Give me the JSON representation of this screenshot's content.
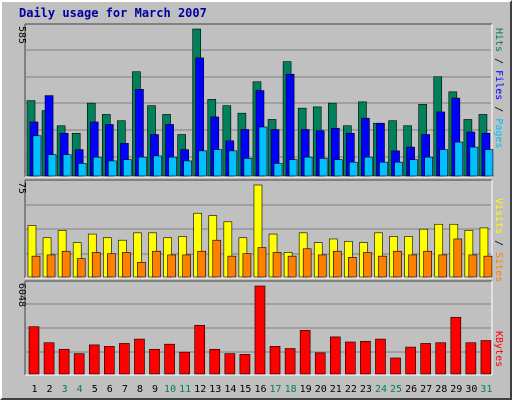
{
  "title": "Daily usage for March 2007",
  "colors": {
    "background": "#c0c0c0",
    "grid": "#808080",
    "hits": "#00805b",
    "files": "#0000ff",
    "pages": "#00c0ff",
    "visits": "#ffff00",
    "sites": "#ff8000",
    "kbytes": "#ff0000",
    "weekend_label": "#00805b",
    "weekday_label": "#000000",
    "title": "#0000a0"
  },
  "chart_data": [
    {
      "type": "bar",
      "panel": "hits",
      "ymax_label": "585",
      "ylim": [
        0,
        585
      ],
      "legend": [
        {
          "label": "Pages",
          "color": "#00c0ff"
        },
        {
          "label": "Files",
          "color": "#0000ff"
        },
        {
          "label": "Hits",
          "color": "#00805b"
        }
      ],
      "categories": [
        "1",
        "2",
        "3",
        "4",
        "5",
        "6",
        "7",
        "8",
        "9",
        "10",
        "11",
        "12",
        "13",
        "14",
        "15",
        "16",
        "17",
        "18",
        "19",
        "20",
        "21",
        "22",
        "23",
        "24",
        "25",
        "26",
        "27",
        "28",
        "29",
        "30",
        "31"
      ],
      "series": [
        {
          "name": "Hits",
          "values": [
            300,
            260,
            200,
            170,
            290,
            245,
            220,
            415,
            280,
            245,
            165,
            585,
            305,
            280,
            250,
            375,
            225,
            455,
            270,
            275,
            290,
            200,
            295,
            210,
            220,
            200,
            285,
            395,
            335,
            225,
            245
          ]
        },
        {
          "name": "Files",
          "values": [
            215,
            320,
            170,
            105,
            215,
            205,
            130,
            345,
            165,
            205,
            105,
            470,
            235,
            140,
            185,
            340,
            185,
            405,
            185,
            180,
            190,
            170,
            230,
            210,
            100,
            115,
            165,
            255,
            310,
            175,
            170
          ]
        },
        {
          "name": "Pages",
          "values": [
            160,
            85,
            85,
            50,
            75,
            60,
            65,
            75,
            80,
            75,
            60,
            100,
            105,
            100,
            70,
            195,
            50,
            65,
            75,
            70,
            65,
            55,
            75,
            55,
            55,
            65,
            75,
            105,
            135,
            115,
            105
          ]
        }
      ]
    },
    {
      "type": "bar",
      "panel": "visits",
      "ymax_label": "75",
      "ylim": [
        0,
        75
      ],
      "legend": [
        {
          "label": "Sites",
          "color": "#ff8000"
        },
        {
          "label": "Visits",
          "color": "#ffff00"
        }
      ],
      "categories": [
        "1",
        "2",
        "3",
        "4",
        "5",
        "6",
        "7",
        "8",
        "9",
        "10",
        "11",
        "12",
        "13",
        "14",
        "15",
        "16",
        "17",
        "18",
        "19",
        "20",
        "21",
        "22",
        "23",
        "24",
        "25",
        "26",
        "27",
        "28",
        "29",
        "30",
        "31"
      ],
      "series": [
        {
          "name": "Visits",
          "values": [
            42,
            32,
            38,
            28,
            35,
            32,
            30,
            36,
            36,
            32,
            33,
            52,
            50,
            45,
            32,
            75,
            35,
            20,
            36,
            28,
            31,
            29,
            28,
            36,
            33,
            33,
            39,
            43,
            43,
            38,
            40
          ]
        },
        {
          "name": "Sites",
          "values": [
            17,
            18,
            21,
            15,
            20,
            19,
            20,
            12,
            21,
            18,
            18,
            21,
            30,
            17,
            19,
            24,
            20,
            17,
            23,
            18,
            21,
            16,
            20,
            17,
            21,
            18,
            21,
            18,
            31,
            18,
            17
          ]
        }
      ]
    },
    {
      "type": "bar",
      "panel": "kbytes",
      "ymax_label": "6048",
      "ylim": [
        0,
        6048
      ],
      "legend": [
        {
          "label": "KBytes",
          "color": "#ff0000"
        }
      ],
      "categories": [
        "1",
        "2",
        "3",
        "4",
        "5",
        "6",
        "7",
        "8",
        "9",
        "10",
        "11",
        "12",
        "13",
        "14",
        "15",
        "16",
        "17",
        "18",
        "19",
        "20",
        "21",
        "22",
        "23",
        "24",
        "25",
        "26",
        "27",
        "28",
        "29",
        "30",
        "31"
      ],
      "series": [
        {
          "name": "KBytes",
          "values": [
            3250,
            2150,
            1700,
            1400,
            2000,
            1900,
            2100,
            2400,
            1700,
            2050,
            1500,
            3350,
            1700,
            1400,
            1350,
            6048,
            1900,
            1750,
            3000,
            1450,
            2550,
            2200,
            2250,
            2400,
            1100,
            1850,
            2100,
            2150,
            3900,
            2150,
            2300
          ]
        }
      ]
    }
  ],
  "x_labels": {
    "days": [
      "1",
      "2",
      "3",
      "4",
      "5",
      "6",
      "7",
      "8",
      "9",
      "10",
      "11",
      "12",
      "13",
      "14",
      "15",
      "16",
      "17",
      "18",
      "19",
      "20",
      "21",
      "22",
      "23",
      "24",
      "25",
      "26",
      "27",
      "28",
      "29",
      "30",
      "31"
    ],
    "weekend": [
      3,
      4,
      10,
      11,
      17,
      18,
      24,
      25,
      31
    ]
  }
}
